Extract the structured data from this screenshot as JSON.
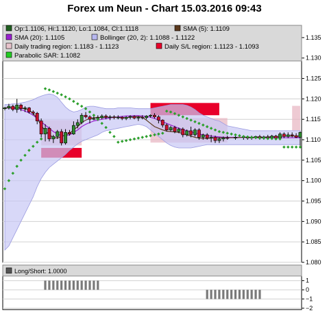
{
  "title": "Forex um Neun - Chart 15.03.2016 09:43",
  "legend": [
    {
      "label": "Op:1.1106, Hi:1.1120, Lo:1.1084, Cl:1.1118",
      "color": "#1f5f1f"
    },
    {
      "label": "SMA (5): 1.1109",
      "color": "#5c3a1e"
    },
    {
      "label": "SMA (20): 1.1105",
      "color": "#9a1fd0"
    },
    {
      "label": "Bollinger (20, 2): 1.1088 - 1.1122",
      "color": "#b8b8f0"
    },
    {
      "label": "Daily trading region: 1.1183 - 1.1123",
      "color": "#e8c4cc"
    },
    {
      "label": "Daily S/L region: 1.1123 - 1.1093",
      "color": "#e8002a"
    },
    {
      "label": "Parabolic SAR: 1.1082",
      "color": "#22cc22"
    }
  ],
  "subpanel": {
    "label": "Long/Short: 1.0000",
    "ticks": [
      "1",
      "0",
      "−1",
      "−2"
    ]
  },
  "colors": {
    "up": "#2e8b2e",
    "down": "#c8102e",
    "bollinger": "#c8c8f5",
    "sma20": "#9a1fd0",
    "sma5": "#5c3a1e",
    "sar": "#2ea02e",
    "stop_loss": "#e8002a",
    "trading_region": "#e8b8c4"
  },
  "chart_data": [
    {
      "type": "candlestick",
      "title": "Forex um Neun - Chart 15.03.2016 09:43",
      "ylim": [
        1.08,
        1.138
      ],
      "y_ticks": [
        "1.135",
        "1.130",
        "1.125",
        "1.120",
        "1.115",
        "1.110",
        "1.105",
        "1.100",
        "1.095",
        "1.090",
        "1.085",
        "1.080"
      ],
      "x": [
        0,
        1,
        2,
        3,
        4,
        5,
        6,
        7,
        8,
        9,
        10,
        11,
        12,
        13,
        14,
        15,
        16,
        17,
        18,
        19,
        20,
        21,
        22,
        23,
        24,
        25,
        26,
        27,
        28,
        29,
        30,
        31,
        32,
        33,
        34,
        35,
        36,
        37,
        38,
        39,
        40,
        41,
        42,
        43,
        44,
        45,
        46,
        47,
        48,
        49,
        50,
        51,
        52,
        53,
        54,
        55,
        57,
        59,
        60,
        61,
        62,
        63,
        64,
        65,
        66,
        67,
        68,
        69,
        70,
        71,
        72,
        73
      ],
      "candles": [
        [
          1.1176,
          1.118,
          1.1172,
          1.1178
        ],
        [
          1.1178,
          1.1188,
          1.1174,
          1.1182
        ],
        [
          1.1182,
          1.1186,
          1.117,
          1.1174
        ],
        [
          1.1174,
          1.12,
          1.1166,
          1.1185
        ],
        [
          1.1185,
          1.1188,
          1.117,
          1.1176
        ],
        [
          1.1176,
          1.1182,
          1.1168,
          1.1178
        ],
        [
          1.1178,
          1.118,
          1.1164,
          1.1168
        ],
        [
          1.1168,
          1.1172,
          1.116,
          1.1165
        ],
        [
          1.1165,
          1.1168,
          1.1138,
          1.1146
        ],
        [
          1.1146,
          1.1152,
          1.1106,
          1.1114
        ],
        [
          1.1114,
          1.1138,
          1.1096,
          1.1128
        ],
        [
          1.1128,
          1.1132,
          1.1096,
          1.1102
        ],
        [
          1.1102,
          1.1112,
          1.1092,
          1.1108
        ],
        [
          1.1108,
          1.1124,
          1.1102,
          1.112
        ],
        [
          1.112,
          1.1126,
          1.1086,
          1.1092
        ],
        [
          1.1092,
          1.1126,
          1.1088,
          1.1118
        ],
        [
          1.1118,
          1.1124,
          1.111,
          1.1114
        ],
        [
          1.1114,
          1.1145,
          1.1112,
          1.1135
        ],
        [
          1.1135,
          1.115,
          1.1128,
          1.1142
        ],
        [
          1.1142,
          1.1165,
          1.1138,
          1.116
        ],
        [
          1.116,
          1.1168,
          1.1152,
          1.1156
        ],
        [
          1.1156,
          1.116,
          1.114,
          1.115
        ],
        [
          1.115,
          1.116,
          1.1148,
          1.1152
        ],
        [
          1.1152,
          1.116,
          1.1146,
          1.1154
        ],
        [
          1.1154,
          1.1162,
          1.115,
          1.1158
        ],
        [
          1.1158,
          1.1162,
          1.115,
          1.1155
        ],
        [
          1.1155,
          1.116,
          1.1148,
          1.1156
        ],
        [
          1.1156,
          1.116,
          1.115,
          1.1154
        ],
        [
          1.1154,
          1.116,
          1.115,
          1.1155
        ],
        [
          1.1155,
          1.1158,
          1.1148,
          1.1152
        ],
        [
          1.1152,
          1.1158,
          1.1148,
          1.1155
        ],
        [
          1.1155,
          1.116,
          1.115,
          1.1157
        ],
        [
          1.1157,
          1.116,
          1.115,
          1.1153
        ],
        [
          1.1153,
          1.1158,
          1.1146,
          1.1155
        ],
        [
          1.1155,
          1.116,
          1.115,
          1.1154
        ],
        [
          1.1154,
          1.116,
          1.115,
          1.1158
        ],
        [
          1.1158,
          1.1162,
          1.1154,
          1.116
        ],
        [
          1.116,
          1.1165,
          1.1152,
          1.1156
        ],
        [
          1.1156,
          1.116,
          1.114,
          1.1148
        ],
        [
          1.1148,
          1.115,
          1.113,
          1.1136
        ],
        [
          1.1136,
          1.114,
          1.112,
          1.1124
        ],
        [
          1.1124,
          1.1134,
          1.112,
          1.113
        ],
        [
          1.113,
          1.1134,
          1.1116,
          1.112
        ],
        [
          1.112,
          1.113,
          1.1116,
          1.1126
        ],
        [
          1.1126,
          1.113,
          1.1106,
          1.1112
        ],
        [
          1.1112,
          1.1125,
          1.1108,
          1.1122
        ],
        [
          1.1122,
          1.1132,
          1.1106,
          1.1112
        ],
        [
          1.1112,
          1.1128,
          1.1108,
          1.1124
        ],
        [
          1.1124,
          1.1128,
          1.11,
          1.1106
        ],
        [
          1.1106,
          1.1115,
          1.11,
          1.1112
        ],
        [
          1.1112,
          1.1116,
          1.11,
          1.1104
        ],
        [
          1.1104,
          1.1112,
          1.1094,
          1.1106
        ],
        [
          1.1106,
          1.111,
          1.1092,
          1.1098
        ],
        [
          1.1098,
          1.1106,
          1.1092,
          1.1102
        ],
        [
          1.1102,
          1.1108,
          1.1096,
          1.1105
        ],
        [
          1.1105,
          1.111,
          1.11,
          1.1104
        ],
        [
          1.1104,
          1.111,
          1.11,
          1.1106
        ],
        [
          1.1106,
          1.111,
          1.11,
          1.1107
        ],
        [
          1.1107,
          1.111,
          1.11,
          1.1104
        ],
        [
          1.1104,
          1.111,
          1.11,
          1.1106
        ],
        [
          1.1106,
          1.111,
          1.1102,
          1.1108
        ],
        [
          1.1108,
          1.1112,
          1.11,
          1.1104
        ],
        [
          1.1104,
          1.111,
          1.11,
          1.1107
        ],
        [
          1.1107,
          1.1112,
          1.1102,
          1.1105
        ],
        [
          1.1105,
          1.1112,
          1.11,
          1.1109
        ],
        [
          1.1109,
          1.1112,
          1.1102,
          1.1104
        ],
        [
          1.1104,
          1.1118,
          1.1102,
          1.1114
        ],
        [
          1.1114,
          1.1118,
          1.1104,
          1.1108
        ],
        [
          1.1108,
          1.1118,
          1.1104,
          1.1112
        ],
        [
          1.1112,
          1.1118,
          1.1106,
          1.111
        ],
        [
          1.111,
          1.1116,
          1.1104,
          1.1106
        ],
        [
          1.1106,
          1.112,
          1.1084,
          1.1118
        ]
      ],
      "sma20": [
        1.1178,
        1.1178,
        1.1177,
        1.1176,
        1.1174,
        1.117,
        1.1166,
        1.116,
        1.1152,
        1.1144,
        1.1136,
        1.1128,
        1.112,
        1.1114,
        1.111,
        1.111,
        1.1112,
        1.1118,
        1.1124,
        1.1132,
        1.1138,
        1.1142,
        1.1146,
        1.1148,
        1.115,
        1.1152,
        1.1153,
        1.1155,
        1.1156,
        1.1157,
        1.1158,
        1.1158,
        1.1159,
        1.1159,
        1.1158,
        1.1157,
        1.1155,
        1.1152,
        1.1148,
        1.1144,
        1.114,
        1.1136,
        1.1132,
        1.1128,
        1.1125,
        1.1122,
        1.1119,
        1.1116,
        1.1114,
        1.1112,
        1.111,
        1.1109,
        1.1108,
        1.1107,
        1.1106,
        1.1106,
        1.1106,
        1.1106,
        1.1106,
        1.1106,
        1.1105,
        1.1105,
        1.1105,
        1.1105,
        1.1105,
        1.1105,
        1.1105,
        1.1105,
        1.1105,
        1.1105,
        1.1105,
        1.1105
      ],
      "sma5": [
        1.1178,
        1.1178,
        1.1178,
        1.1179,
        1.1178,
        1.1175,
        1.1172,
        1.1165,
        1.1152,
        1.1135,
        1.1122,
        1.1112,
        1.1106,
        1.1104,
        1.1108,
        1.1112,
        1.1116,
        1.1124,
        1.1132,
        1.1142,
        1.1148,
        1.1152,
        1.1154,
        1.1155,
        1.1154,
        1.1155,
        1.1155,
        1.1155,
        1.1155,
        1.1154,
        1.1154,
        1.1155,
        1.1156,
        1.1157,
        1.1155,
        1.1148,
        1.114,
        1.1132,
        1.1128,
        1.1124,
        1.1121,
        1.112,
        1.1119,
        1.1118,
        1.1115,
        1.1112,
        1.1109,
        1.1106,
        1.1104,
        1.1103,
        1.1103,
        1.1104,
        1.1105,
        1.1105,
        1.1105,
        1.1105,
        1.1105,
        1.1106,
        1.1106,
        1.1106,
        1.1106,
        1.1106,
        1.1106,
        1.1107,
        1.1107,
        1.1108,
        1.1108,
        1.1109,
        1.1109,
        1.1109,
        1.1109,
        1.1109
      ],
      "bollinger_upper": [
        1.1186,
        1.1186,
        1.1188,
        1.1188,
        1.119,
        1.1192,
        1.1195,
        1.1198,
        1.1203,
        1.1207,
        1.121,
        1.1212,
        1.121,
        1.1204,
        1.1192,
        1.118,
        1.1172,
        1.1168,
        1.117,
        1.1174,
        1.118,
        1.1182,
        1.1182,
        1.118,
        1.1178,
        1.1176,
        1.1176,
        1.1176,
        1.1178,
        1.1178,
        1.1178,
        1.1178,
        1.1177,
        1.1176,
        1.1176,
        1.1176,
        1.1176,
        1.1178,
        1.118,
        1.1182,
        1.1184,
        1.1186,
        1.1186,
        1.1186,
        1.1186,
        1.1184,
        1.118,
        1.1174,
        1.1166,
        1.116,
        1.1156,
        1.1152,
        1.1148,
        1.1146,
        1.114,
        1.1134,
        1.113,
        1.1126,
        1.1124,
        1.1122,
        1.1122,
        1.1122,
        1.1122,
        1.1122,
        1.1122,
        1.1122,
        1.1122,
        1.1122,
        1.1122,
        1.1122,
        1.1122,
        1.1122
      ],
      "bollinger_lower": [
        1.083,
        1.084,
        1.086,
        1.088,
        1.09,
        1.092,
        1.094,
        1.096,
        1.0985,
        1.1005,
        1.102,
        1.1032,
        1.104,
        1.1048,
        1.1056,
        1.1064,
        1.1074,
        1.1082,
        1.109,
        1.1096,
        1.11,
        1.1104,
        1.1108,
        1.1112,
        1.1118,
        1.1122,
        1.1124,
        1.1126,
        1.1128,
        1.113,
        1.1132,
        1.1134,
        1.1136,
        1.1138,
        1.1136,
        1.1132,
        1.1124,
        1.1116,
        1.1108,
        1.11,
        1.1092,
        1.1086,
        1.1082,
        1.108,
        1.108,
        1.108,
        1.108,
        1.1082,
        1.1084,
        1.1086,
        1.1088,
        1.1088,
        1.1088,
        1.1088,
        1.1088,
        1.1088,
        1.1088,
        1.1088,
        1.1088,
        1.1088,
        1.1088,
        1.1088,
        1.1088,
        1.1088,
        1.1088,
        1.1088,
        1.1088,
        1.1088,
        1.1088,
        1.1088,
        1.1088,
        1.1088
      ],
      "sar_x": [
        0,
        1,
        2,
        3,
        4,
        5,
        6,
        7,
        8,
        9,
        10,
        11,
        12,
        13,
        14,
        15,
        16,
        17,
        18,
        19,
        20,
        21,
        22,
        23,
        24,
        25,
        26,
        27,
        28,
        29,
        30,
        31,
        32,
        33,
        34,
        35,
        36,
        37,
        38,
        39,
        40,
        41,
        42,
        43,
        44,
        45,
        46,
        47,
        48,
        49,
        50,
        51,
        52,
        53,
        54,
        55,
        56,
        57,
        58,
        59,
        60,
        61,
        62,
        63,
        64,
        65,
        66,
        67,
        68,
        69,
        70,
        71,
        72,
        73
      ],
      "sar": [
        1.098,
        1.1,
        1.1018,
        1.1035,
        1.105,
        1.1062,
        1.1074,
        1.1084,
        1.1094,
        1.1102,
        1.1225,
        1.1222,
        1.1218,
        1.1214,
        1.121,
        1.1205,
        1.12,
        1.1194,
        1.1188,
        1.1182,
        1.1176,
        1.1168,
        1.116,
        1.115,
        1.114,
        1.113,
        1.1118,
        1.1108,
        1.1094,
        1.1096,
        1.1098,
        1.11,
        1.1102,
        1.1104,
        1.1106,
        1.1108,
        1.111,
        1.1112,
        1.1114,
        1.1116,
        1.117,
        1.1168,
        1.1164,
        1.116,
        1.1156,
        1.1152,
        1.1148,
        1.1144,
        1.114,
        1.1136,
        1.1132,
        1.1128,
        1.1124,
        1.112,
        1.1118,
        1.1116,
        1.1114,
        1.1112,
        1.111,
        1.1108,
        1.1107,
        1.1106,
        1.1105,
        1.1104,
        1.1104,
        1.1103,
        1.1103,
        1.1102,
        1.1102,
        1.1082,
        1.1082,
        1.1082,
        1.1082,
        1.1082
      ],
      "trading_regions": [
        {
          "x0": 9,
          "x1": 19,
          "y0": 1.1148,
          "y1": 1.1086
        },
        {
          "x0": 36,
          "x1": 43,
          "y0": 1.1185,
          "y1": 1.1123
        },
        {
          "x0": 36,
          "x1": 55,
          "y0": 1.1153,
          "y1": 1.1093
        },
        {
          "x0": 71,
          "x1": 73,
          "y0": 1.1183,
          "y1": 1.1123
        }
      ],
      "sl_regions": [
        {
          "x0": 9,
          "x1": 19,
          "y0": 1.108,
          "y1": 1.1056
        },
        {
          "x0": 36,
          "x1": 53,
          "y0": 1.119,
          "y1": 1.116
        }
      ]
    },
    {
      "type": "bar",
      "title": "Long/Short: 1.0000",
      "ylim": [
        -2,
        1.5
      ],
      "x": [
        10,
        11,
        12,
        13,
        14,
        15,
        16,
        17,
        18,
        19,
        20,
        21,
        22,
        23,
        24,
        25,
        26,
        27,
        28,
        29,
        30,
        31,
        32,
        33,
        34,
        35,
        36,
        37,
        38,
        39,
        40,
        41,
        42,
        43,
        44,
        45,
        46,
        47,
        48,
        49,
        50,
        51,
        52,
        53,
        54,
        55,
        56,
        57,
        58,
        59,
        60,
        61,
        62,
        63,
        64,
        65,
        66,
        67,
        68,
        69
      ],
      "values": [
        1,
        1,
        1,
        1,
        1,
        1,
        1,
        1,
        1,
        1,
        1,
        1,
        1,
        1,
        0,
        0,
        0,
        0,
        0,
        0,
        0,
        0,
        0,
        0,
        0,
        0,
        0,
        0,
        0,
        0,
        0,
        0,
        0,
        0,
        0,
        0,
        0,
        0,
        0,
        0,
        -1,
        -1,
        -1,
        -1,
        -1,
        -1,
        -1,
        -1,
        -1,
        -1,
        -1,
        -1,
        -1,
        -1,
        0,
        0,
        0,
        0,
        0,
        0
      ]
    }
  ]
}
